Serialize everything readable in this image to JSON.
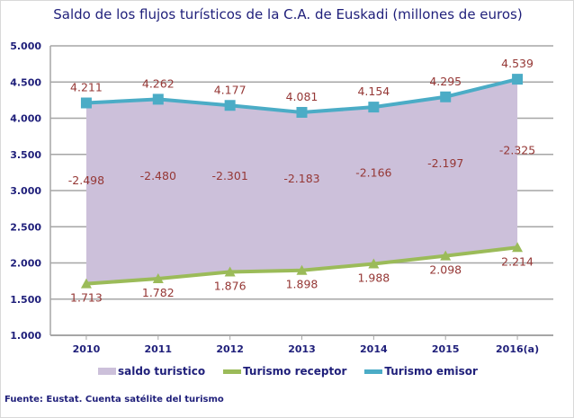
{
  "chart_data": {
    "type": "line",
    "title": "Saldo de los flujos turísticos de la C.A. de Euskadi (millones de euros)",
    "categories": [
      "2010",
      "2011",
      "2012",
      "2013",
      "2014",
      "2015",
      "2016(a)"
    ],
    "ylim": [
      1000,
      5000
    ],
    "yticks": [
      "1.000",
      "1.500",
      "2.000",
      "2.500",
      "3.000",
      "3.500",
      "4.000",
      "4.500",
      "5.000"
    ],
    "grid": true,
    "legend_position": "bottom",
    "series": [
      {
        "name": "saldo turistico",
        "type": "area",
        "color": "#ccc0da",
        "values": [
          -2498,
          -2480,
          -2301,
          -2183,
          -2166,
          -2197,
          -2325
        ],
        "labels": [
          "-2.498",
          "-2.480",
          "-2.301",
          "-2.183",
          "-2.166",
          "-2.197",
          "-2.325"
        ]
      },
      {
        "name": "Turismo receptor",
        "type": "line",
        "marker": "triangle",
        "color": "#9bbb59",
        "values": [
          1713,
          1782,
          1876,
          1898,
          1988,
          2098,
          2214
        ],
        "labels": [
          "1.713",
          "1.782",
          "1.876",
          "1.898",
          "1.988",
          "2.098",
          "2.214"
        ]
      },
      {
        "name": "Turismo emisor",
        "type": "line",
        "marker": "square",
        "color": "#4bacc6",
        "values": [
          4211,
          4262,
          4177,
          4081,
          4154,
          4295,
          4539
        ],
        "labels": [
          "4.211",
          "4.262",
          "4.177",
          "4.081",
          "4.154",
          "4.295",
          "4.539"
        ]
      }
    ]
  },
  "source": "Fuente: Eustat. Cuenta satélite del turismo"
}
